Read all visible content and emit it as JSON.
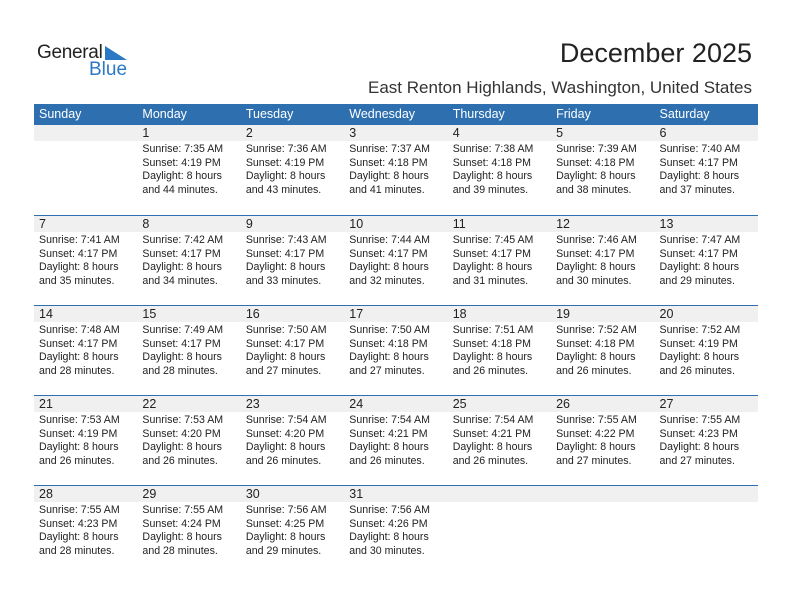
{
  "logo": {
    "general": "General",
    "blue": "Blue"
  },
  "title": "December 2025",
  "subtitle": "East Renton Highlands, Washington, United States",
  "colors": {
    "header": "#2e6fb0",
    "accent": "#2b78c5",
    "date_strip": "#f0f0f0"
  },
  "weekdays": [
    "Sunday",
    "Monday",
    "Tuesday",
    "Wednesday",
    "Thursday",
    "Friday",
    "Saturday"
  ],
  "weeks": [
    [
      null,
      {
        "day": "1",
        "sunrise": "Sunrise: 7:35 AM",
        "sunset": "Sunset: 4:19 PM",
        "daylight": "Daylight: 8 hours",
        "minutes": "and 44 minutes."
      },
      {
        "day": "2",
        "sunrise": "Sunrise: 7:36 AM",
        "sunset": "Sunset: 4:19 PM",
        "daylight": "Daylight: 8 hours",
        "minutes": "and 43 minutes."
      },
      {
        "day": "3",
        "sunrise": "Sunrise: 7:37 AM",
        "sunset": "Sunset: 4:18 PM",
        "daylight": "Daylight: 8 hours",
        "minutes": "and 41 minutes."
      },
      {
        "day": "4",
        "sunrise": "Sunrise: 7:38 AM",
        "sunset": "Sunset: 4:18 PM",
        "daylight": "Daylight: 8 hours",
        "minutes": "and 39 minutes."
      },
      {
        "day": "5",
        "sunrise": "Sunrise: 7:39 AM",
        "sunset": "Sunset: 4:18 PM",
        "daylight": "Daylight: 8 hours",
        "minutes": "and 38 minutes."
      },
      {
        "day": "6",
        "sunrise": "Sunrise: 7:40 AM",
        "sunset": "Sunset: 4:17 PM",
        "daylight": "Daylight: 8 hours",
        "minutes": "and 37 minutes."
      }
    ],
    [
      {
        "day": "7",
        "sunrise": "Sunrise: 7:41 AM",
        "sunset": "Sunset: 4:17 PM",
        "daylight": "Daylight: 8 hours",
        "minutes": "and 35 minutes."
      },
      {
        "day": "8",
        "sunrise": "Sunrise: 7:42 AM",
        "sunset": "Sunset: 4:17 PM",
        "daylight": "Daylight: 8 hours",
        "minutes": "and 34 minutes."
      },
      {
        "day": "9",
        "sunrise": "Sunrise: 7:43 AM",
        "sunset": "Sunset: 4:17 PM",
        "daylight": "Daylight: 8 hours",
        "minutes": "and 33 minutes."
      },
      {
        "day": "10",
        "sunrise": "Sunrise: 7:44 AM",
        "sunset": "Sunset: 4:17 PM",
        "daylight": "Daylight: 8 hours",
        "minutes": "and 32 minutes."
      },
      {
        "day": "11",
        "sunrise": "Sunrise: 7:45 AM",
        "sunset": "Sunset: 4:17 PM",
        "daylight": "Daylight: 8 hours",
        "minutes": "and 31 minutes."
      },
      {
        "day": "12",
        "sunrise": "Sunrise: 7:46 AM",
        "sunset": "Sunset: 4:17 PM",
        "daylight": "Daylight: 8 hours",
        "minutes": "and 30 minutes."
      },
      {
        "day": "13",
        "sunrise": "Sunrise: 7:47 AM",
        "sunset": "Sunset: 4:17 PM",
        "daylight": "Daylight: 8 hours",
        "minutes": "and 29 minutes."
      }
    ],
    [
      {
        "day": "14",
        "sunrise": "Sunrise: 7:48 AM",
        "sunset": "Sunset: 4:17 PM",
        "daylight": "Daylight: 8 hours",
        "minutes": "and 28 minutes."
      },
      {
        "day": "15",
        "sunrise": "Sunrise: 7:49 AM",
        "sunset": "Sunset: 4:17 PM",
        "daylight": "Daylight: 8 hours",
        "minutes": "and 28 minutes."
      },
      {
        "day": "16",
        "sunrise": "Sunrise: 7:50 AM",
        "sunset": "Sunset: 4:17 PM",
        "daylight": "Daylight: 8 hours",
        "minutes": "and 27 minutes."
      },
      {
        "day": "17",
        "sunrise": "Sunrise: 7:50 AM",
        "sunset": "Sunset: 4:18 PM",
        "daylight": "Daylight: 8 hours",
        "minutes": "and 27 minutes."
      },
      {
        "day": "18",
        "sunrise": "Sunrise: 7:51 AM",
        "sunset": "Sunset: 4:18 PM",
        "daylight": "Daylight: 8 hours",
        "minutes": "and 26 minutes."
      },
      {
        "day": "19",
        "sunrise": "Sunrise: 7:52 AM",
        "sunset": "Sunset: 4:18 PM",
        "daylight": "Daylight: 8 hours",
        "minutes": "and 26 minutes."
      },
      {
        "day": "20",
        "sunrise": "Sunrise: 7:52 AM",
        "sunset": "Sunset: 4:19 PM",
        "daylight": "Daylight: 8 hours",
        "minutes": "and 26 minutes."
      }
    ],
    [
      {
        "day": "21",
        "sunrise": "Sunrise: 7:53 AM",
        "sunset": "Sunset: 4:19 PM",
        "daylight": "Daylight: 8 hours",
        "minutes": "and 26 minutes."
      },
      {
        "day": "22",
        "sunrise": "Sunrise: 7:53 AM",
        "sunset": "Sunset: 4:20 PM",
        "daylight": "Daylight: 8 hours",
        "minutes": "and 26 minutes."
      },
      {
        "day": "23",
        "sunrise": "Sunrise: 7:54 AM",
        "sunset": "Sunset: 4:20 PM",
        "daylight": "Daylight: 8 hours",
        "minutes": "and 26 minutes."
      },
      {
        "day": "24",
        "sunrise": "Sunrise: 7:54 AM",
        "sunset": "Sunset: 4:21 PM",
        "daylight": "Daylight: 8 hours",
        "minutes": "and 26 minutes."
      },
      {
        "day": "25",
        "sunrise": "Sunrise: 7:54 AM",
        "sunset": "Sunset: 4:21 PM",
        "daylight": "Daylight: 8 hours",
        "minutes": "and 26 minutes."
      },
      {
        "day": "26",
        "sunrise": "Sunrise: 7:55 AM",
        "sunset": "Sunset: 4:22 PM",
        "daylight": "Daylight: 8 hours",
        "minutes": "and 27 minutes."
      },
      {
        "day": "27",
        "sunrise": "Sunrise: 7:55 AM",
        "sunset": "Sunset: 4:23 PM",
        "daylight": "Daylight: 8 hours",
        "minutes": "and 27 minutes."
      }
    ],
    [
      {
        "day": "28",
        "sunrise": "Sunrise: 7:55 AM",
        "sunset": "Sunset: 4:23 PM",
        "daylight": "Daylight: 8 hours",
        "minutes": "and 28 minutes."
      },
      {
        "day": "29",
        "sunrise": "Sunrise: 7:55 AM",
        "sunset": "Sunset: 4:24 PM",
        "daylight": "Daylight: 8 hours",
        "minutes": "and 28 minutes."
      },
      {
        "day": "30",
        "sunrise": "Sunrise: 7:56 AM",
        "sunset": "Sunset: 4:25 PM",
        "daylight": "Daylight: 8 hours",
        "minutes": "and 29 minutes."
      },
      {
        "day": "31",
        "sunrise": "Sunrise: 7:56 AM",
        "sunset": "Sunset: 4:26 PM",
        "daylight": "Daylight: 8 hours",
        "minutes": "and 30 minutes."
      },
      null,
      null,
      null
    ]
  ]
}
